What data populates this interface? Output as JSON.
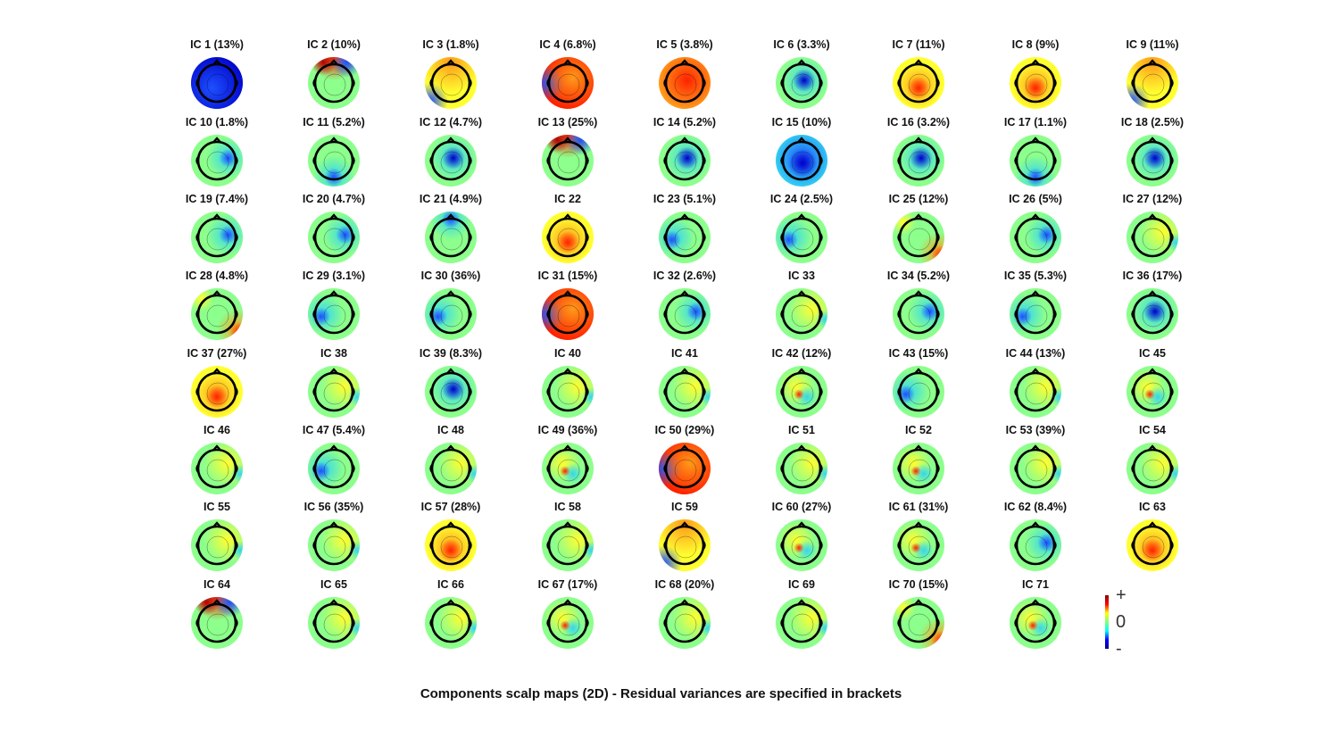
{
  "components": [
    {
      "label": "IC 1 (13%)",
      "pattern": "deep-blue"
    },
    {
      "label": "IC 2 (10%)",
      "pattern": "frontal-red"
    },
    {
      "label": "IC 3 (1.8%)",
      "pattern": "warm-gradient"
    },
    {
      "label": "IC 4 (6.8%)",
      "pattern": "red-left-blue"
    },
    {
      "label": "IC 5 (3.8%)",
      "pattern": "red-broad"
    },
    {
      "label": "IC 6 (3.3%)",
      "pattern": "central-blue"
    },
    {
      "label": "IC 7 (11%)",
      "pattern": "central-red"
    },
    {
      "label": "IC 8 (9%)",
      "pattern": "central-red"
    },
    {
      "label": "IC 9 (11%)",
      "pattern": "warm-gradient"
    },
    {
      "label": "IC 10 (1.8%)",
      "pattern": "blue-right"
    },
    {
      "label": "IC 11 (5.2%)",
      "pattern": "occipital-blue"
    },
    {
      "label": "IC 12 (4.7%)",
      "pattern": "central-blue"
    },
    {
      "label": "IC 13 (25%)",
      "pattern": "frontal-red"
    },
    {
      "label": "IC 14 (5.2%)",
      "pattern": "central-blue"
    },
    {
      "label": "IC 15 (10%)",
      "pattern": "deep-central-blue"
    },
    {
      "label": "IC 16 (3.2%)",
      "pattern": "central-blue"
    },
    {
      "label": "IC 17 (1.1%)",
      "pattern": "occipital-blue"
    },
    {
      "label": "IC 18 (2.5%)",
      "pattern": "central-blue"
    },
    {
      "label": "IC 19 (7.4%)",
      "pattern": "blue-right"
    },
    {
      "label": "IC 20 (4.7%)",
      "pattern": "blue-right"
    },
    {
      "label": "IC 21 (4.9%)",
      "pattern": "frontal-blue"
    },
    {
      "label": "IC 22",
      "pattern": "central-red"
    },
    {
      "label": "IC 23 (5.1%)",
      "pattern": "blue-left"
    },
    {
      "label": "IC 24 (2.5%)",
      "pattern": "blue-left"
    },
    {
      "label": "IC 25 (12%)",
      "pattern": "red-right-edge"
    },
    {
      "label": "IC 26 (5%)",
      "pattern": "blue-right"
    },
    {
      "label": "IC 27 (12%)",
      "pattern": "green-flat"
    },
    {
      "label": "IC 28 (4.8%)",
      "pattern": "red-right-edge"
    },
    {
      "label": "IC 29 (3.1%)",
      "pattern": "blue-left"
    },
    {
      "label": "IC 30 (36%)",
      "pattern": "blue-left"
    },
    {
      "label": "IC 31 (15%)",
      "pattern": "red-left-blue"
    },
    {
      "label": "IC 32 (2.6%)",
      "pattern": "blue-right"
    },
    {
      "label": "IC 33",
      "pattern": "green-flat"
    },
    {
      "label": "IC 34 (5.2%)",
      "pattern": "blue-right"
    },
    {
      "label": "IC 35 (5.3%)",
      "pattern": "blue-left"
    },
    {
      "label": "IC 36 (17%)",
      "pattern": "central-blue"
    },
    {
      "label": "IC 37 (27%)",
      "pattern": "central-red"
    },
    {
      "label": "IC 38",
      "pattern": "green-flat"
    },
    {
      "label": "IC 39 (8.3%)",
      "pattern": "central-blue"
    },
    {
      "label": "IC 40",
      "pattern": "green-flat"
    },
    {
      "label": "IC 41",
      "pattern": "green-flat"
    },
    {
      "label": "IC 42 (12%)",
      "pattern": "mixed"
    },
    {
      "label": "IC 43 (15%)",
      "pattern": "blue-left"
    },
    {
      "label": "IC 44 (13%)",
      "pattern": "green-flat"
    },
    {
      "label": "IC 45",
      "pattern": "mixed"
    },
    {
      "label": "IC 46",
      "pattern": "green-flat"
    },
    {
      "label": "IC 47 (5.4%)",
      "pattern": "blue-left"
    },
    {
      "label": "IC 48",
      "pattern": "green-flat"
    },
    {
      "label": "IC 49 (36%)",
      "pattern": "mixed"
    },
    {
      "label": "IC 50 (29%)",
      "pattern": "red-left-blue"
    },
    {
      "label": "IC 51",
      "pattern": "green-flat"
    },
    {
      "label": "IC 52",
      "pattern": "mixed"
    },
    {
      "label": "IC 53 (39%)",
      "pattern": "green-flat"
    },
    {
      "label": "IC 54",
      "pattern": "green-flat"
    },
    {
      "label": "IC 55",
      "pattern": "green-flat"
    },
    {
      "label": "IC 56 (35%)",
      "pattern": "green-flat"
    },
    {
      "label": "IC 57 (28%)",
      "pattern": "central-red"
    },
    {
      "label": "IC 58",
      "pattern": "green-flat"
    },
    {
      "label": "IC 59",
      "pattern": "warm-gradient"
    },
    {
      "label": "IC 60 (27%)",
      "pattern": "mixed"
    },
    {
      "label": "IC 61 (31%)",
      "pattern": "mixed"
    },
    {
      "label": "IC 62 (8.4%)",
      "pattern": "blue-right"
    },
    {
      "label": "IC 63",
      "pattern": "central-red"
    },
    {
      "label": "IC 64",
      "pattern": "frontal-red"
    },
    {
      "label": "IC 65",
      "pattern": "green-flat"
    },
    {
      "label": "IC 66",
      "pattern": "green-flat"
    },
    {
      "label": "IC 67 (17%)",
      "pattern": "mixed"
    },
    {
      "label": "IC 68 (20%)",
      "pattern": "green-flat"
    },
    {
      "label": "IC 69",
      "pattern": "green-flat"
    },
    {
      "label": "IC 70 (15%)",
      "pattern": "red-right-edge"
    },
    {
      "label": "IC 71",
      "pattern": "mixed"
    }
  ],
  "colorbar": {
    "max_label": "+",
    "mid_label": "0",
    "min_label": "-"
  },
  "caption": "Components scalp maps (2D) - Residual variances are specified in brackets",
  "colors": {
    "deep_blue": "#0000c8",
    "blue": "#1e50ff",
    "cyan": "#33d6f0",
    "green": "#8cff8c",
    "yellow": "#ffff30",
    "orange": "#ff9a1a",
    "red": "#ff2200",
    "dark_red": "#b80000"
  }
}
